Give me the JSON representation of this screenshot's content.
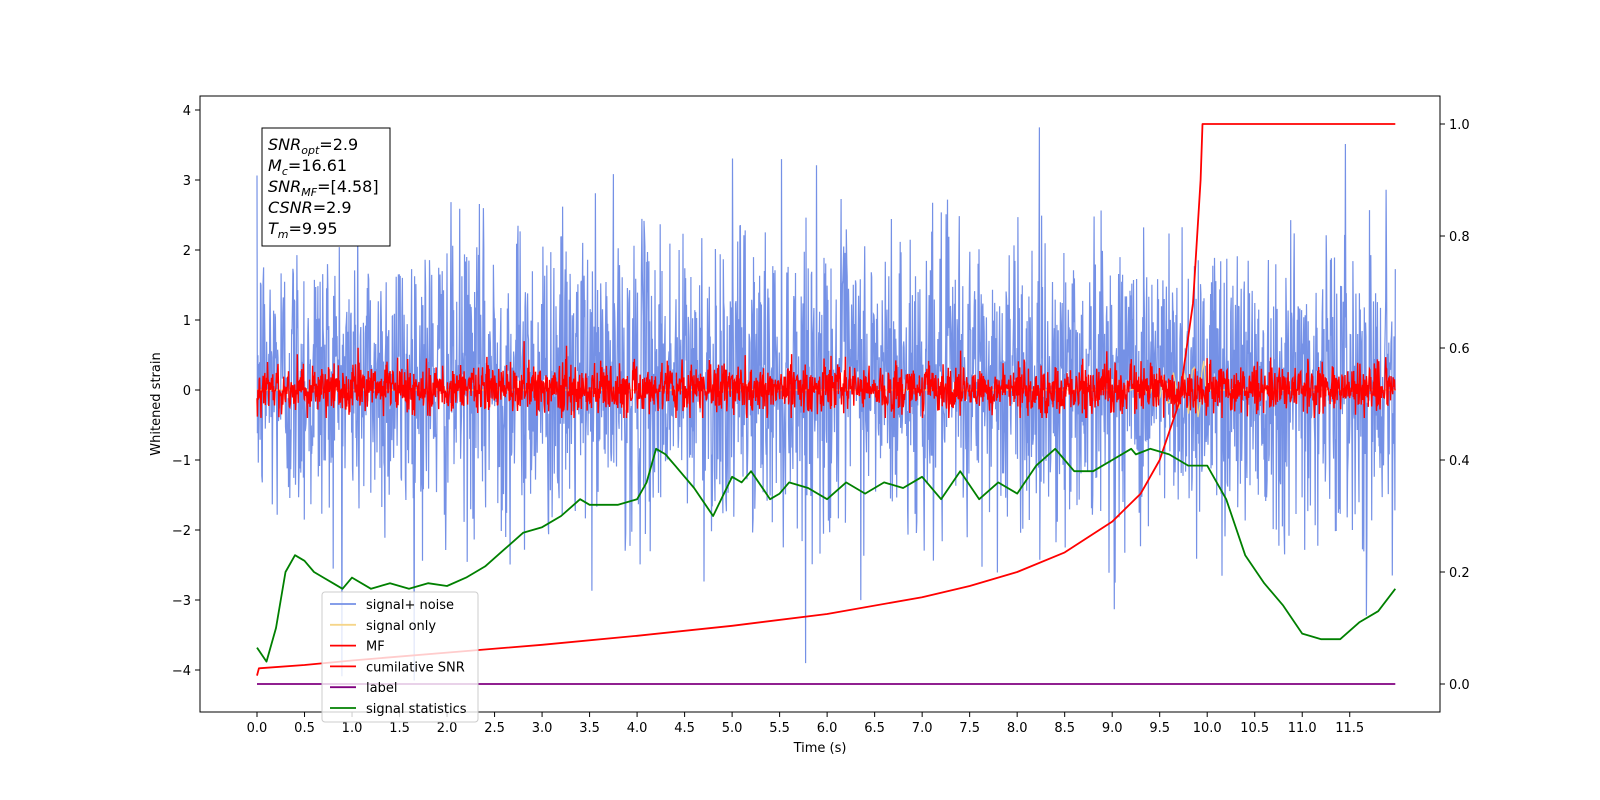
{
  "chart_data": {
    "type": "line",
    "xlabel": "Time (s)",
    "ylabel": "Whitened strain",
    "xlim": [
      -0.6,
      12.45
    ],
    "ylim": [
      -4.6,
      4.2
    ],
    "ylim_right": [
      -0.05,
      1.05
    ],
    "grid": false,
    "legend_position": "lower-left",
    "x_ticks": [
      "0.0",
      "0.5",
      "1.0",
      "1.5",
      "2.0",
      "2.5",
      "3.0",
      "3.5",
      "4.0",
      "4.5",
      "5.0",
      "5.5",
      "6.0",
      "6.5",
      "7.0",
      "7.5",
      "8.0",
      "8.5",
      "9.0",
      "9.5",
      "10.0",
      "10.5",
      "11.0",
      "11.5"
    ],
    "y_ticks_left": [
      "4",
      "3",
      "2",
      "1",
      "0",
      "−1",
      "−2",
      "−3",
      "−4"
    ],
    "y_ticks_right": [
      "1.0",
      "0.8",
      "0.6",
      "0.4",
      "0.2",
      "0.0"
    ],
    "annotation": [
      {
        "sym": "SNR",
        "sub": "opt",
        "val": "=2.9"
      },
      {
        "sym": "M",
        "sub": "c",
        "val": "=16.61"
      },
      {
        "sym": "SNR",
        "sub": "MF",
        "val": "=[4.58]"
      },
      {
        "sym": "CSNR",
        "sub": "",
        "val": "=2.9"
      },
      {
        "sym": "T",
        "sub": "m",
        "val": "=9.95"
      }
    ],
    "series": [
      {
        "name": "signal+ noise",
        "color": "#7591e6",
        "axis": "left",
        "x_range": [
          0,
          11.98
        ],
        "approx_range": [
          -4.15,
          3.8
        ]
      },
      {
        "name": "signal only",
        "color": "#f5d58a",
        "axis": "left",
        "x_range": [
          0,
          11.98
        ]
      },
      {
        "name": "MF",
        "color": "#ff0000",
        "axis": "left",
        "x_range": [
          0,
          11.98
        ],
        "approx_range": [
          -0.4,
          0.9
        ]
      },
      {
        "name": "cumilative SNR",
        "color": "#ff0000",
        "axis": "right",
        "x": [
          0,
          0.02,
          0.5,
          1.0,
          2.0,
          3.0,
          4.0,
          5.0,
          6.0,
          7.0,
          7.5,
          8.0,
          8.5,
          9.0,
          9.3,
          9.5,
          9.7,
          9.85,
          9.93,
          9.95,
          11.98
        ],
        "y": [
          0.015,
          0.028,
          0.034,
          0.042,
          0.056,
          0.07,
          0.086,
          0.104,
          0.125,
          0.155,
          0.175,
          0.2,
          0.235,
          0.29,
          0.34,
          0.4,
          0.5,
          0.68,
          0.9,
          1.0,
          1.0
        ]
      },
      {
        "name": "label",
        "color": "#800080",
        "axis": "right",
        "x": [
          0,
          11.98
        ],
        "y": [
          0,
          0
        ]
      },
      {
        "name": "signal statistics",
        "color": "#008000",
        "axis": "right",
        "x": [
          0.0,
          0.1,
          0.2,
          0.3,
          0.4,
          0.5,
          0.6,
          0.7,
          0.8,
          0.9,
          1.0,
          1.2,
          1.4,
          1.6,
          1.8,
          2.0,
          2.2,
          2.4,
          2.6,
          2.8,
          3.0,
          3.2,
          3.4,
          3.5,
          3.6,
          3.8,
          4.0,
          4.1,
          4.2,
          4.3,
          4.35,
          4.4,
          4.6,
          4.8,
          5.0,
          5.1,
          5.2,
          5.4,
          5.5,
          5.6,
          5.8,
          6.0,
          6.2,
          6.4,
          6.6,
          6.8,
          7.0,
          7.2,
          7.4,
          7.6,
          7.8,
          8.0,
          8.2,
          8.4,
          8.5,
          8.6,
          8.8,
          9.0,
          9.2,
          9.25,
          9.4,
          9.6,
          9.8,
          10.0,
          10.2,
          10.4,
          10.6,
          10.8,
          11.0,
          11.2,
          11.4,
          11.6,
          11.8,
          11.98
        ],
        "y": [
          0.065,
          0.04,
          0.1,
          0.2,
          0.23,
          0.22,
          0.2,
          0.19,
          0.18,
          0.17,
          0.19,
          0.17,
          0.18,
          0.17,
          0.18,
          0.175,
          0.19,
          0.21,
          0.24,
          0.27,
          0.28,
          0.3,
          0.33,
          0.32,
          0.32,
          0.32,
          0.33,
          0.36,
          0.42,
          0.41,
          0.4,
          0.39,
          0.35,
          0.3,
          0.37,
          0.36,
          0.38,
          0.33,
          0.34,
          0.36,
          0.35,
          0.33,
          0.36,
          0.34,
          0.36,
          0.35,
          0.37,
          0.33,
          0.38,
          0.33,
          0.36,
          0.34,
          0.39,
          0.42,
          0.4,
          0.38,
          0.38,
          0.4,
          0.42,
          0.41,
          0.42,
          0.41,
          0.39,
          0.39,
          0.33,
          0.23,
          0.18,
          0.14,
          0.09,
          0.08,
          0.08,
          0.11,
          0.13,
          0.17
        ]
      }
    ]
  }
}
